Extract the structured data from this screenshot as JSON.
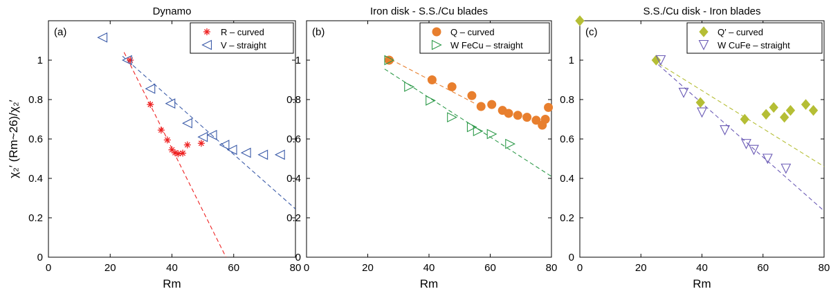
{
  "colors": {
    "red": "#ee2222",
    "blue": "#3a5aa8",
    "orange": "#e87f2e",
    "green": "#2e9a4a",
    "olive": "#b5be35",
    "purple": "#6a5ab5"
  },
  "chart_data": [
    {
      "type": "scatter",
      "title": "Dynamo",
      "panel_label": "(a)",
      "xlabel": "Rm",
      "ylabel": "χ₂′ (Rm~26)/χ₂′",
      "xlim": [
        0,
        80
      ],
      "ylim": [
        0,
        1.2
      ],
      "xticks": [
        0,
        20,
        40,
        60,
        80
      ],
      "yticks": [
        0,
        0.2,
        0.4,
        0.6,
        0.8,
        1
      ],
      "legend_position": "top-right",
      "series": [
        {
          "name": "R – curved",
          "marker": "asterisk",
          "color": "#ee2222",
          "x": [
            26.5,
            33,
            36.5,
            38.5,
            40,
            41,
            42,
            43.5,
            45,
            49.5
          ],
          "y": [
            1.0,
            0.775,
            0.645,
            0.595,
            0.545,
            0.53,
            0.525,
            0.528,
            0.57,
            0.578
          ],
          "fit": {
            "x1": 24.5,
            "y1": 1.04,
            "x2": 57.5,
            "y2": 0.0
          }
        },
        {
          "name": "V – straight",
          "marker": "triangle-left",
          "color": "#3a5aa8",
          "x": [
            17.5,
            25.5,
            33,
            39.5,
            45,
            50,
            53,
            57,
            59.5,
            64,
            69.5,
            75
          ],
          "y": [
            1.115,
            1.0,
            0.855,
            0.78,
            0.68,
            0.61,
            0.62,
            0.57,
            0.545,
            0.53,
            0.52,
            0.52
          ],
          "fit": {
            "x1": 24,
            "y1": 1.02,
            "x2": 80,
            "y2": 0.245
          }
        }
      ]
    },
    {
      "type": "scatter",
      "title": "Iron disk  - S.S./Cu blades",
      "panel_label": "(b)",
      "xlabel": "Rm",
      "xlim": [
        0,
        80
      ],
      "ylim": [
        0,
        1.2
      ],
      "xticks": [
        0,
        20,
        40,
        60,
        80
      ],
      "yticks": [
        0,
        0.2,
        0.4,
        0.6,
        0.8,
        1
      ],
      "legend_position": "top-right",
      "series": [
        {
          "name": "Q – curved",
          "marker": "circle",
          "color": "#e87f2e",
          "x": [
            27,
            41,
            47.5,
            54,
            57,
            60.5,
            64,
            66,
            69,
            72,
            75,
            77,
            78,
            79
          ],
          "y": [
            1.0,
            0.9,
            0.865,
            0.82,
            0.765,
            0.775,
            0.745,
            0.73,
            0.72,
            0.71,
            0.695,
            0.67,
            0.7,
            0.76
          ],
          "fit": {
            "x1": 25.5,
            "y1": 1.02,
            "x2": 55,
            "y2": 0.78
          }
        },
        {
          "name": "W FeCu – straight",
          "marker": "triangle-right",
          "color": "#2e9a4a",
          "x": [
            27,
            33.5,
            40.5,
            47.5,
            54,
            56,
            60.5,
            66.5
          ],
          "y": [
            1.0,
            0.865,
            0.795,
            0.71,
            0.66,
            0.64,
            0.625,
            0.575
          ],
          "fit": {
            "x1": 25.5,
            "y1": 0.955,
            "x2": 80,
            "y2": 0.41
          }
        }
      ]
    },
    {
      "type": "scatter",
      "title": "S.S./Cu disk - Iron blades",
      "panel_label": "(c)",
      "xlabel": "Rm",
      "xlim": [
        0,
        80
      ],
      "ylim": [
        0,
        1.2
      ],
      "xticks": [
        0,
        20,
        40,
        60,
        80
      ],
      "yticks": [
        0,
        0.2,
        0.4,
        0.6,
        0.8,
        1
      ],
      "legend_position": "top-right",
      "series": [
        {
          "name": "Q′ – curved",
          "marker": "diamond",
          "color": "#b5be35",
          "x": [
            0,
            25,
            39.5,
            54,
            61,
            63.5,
            67,
            69,
            74,
            76.5
          ],
          "y": [
            1.2,
            1.0,
            0.785,
            0.7,
            0.725,
            0.76,
            0.71,
            0.745,
            0.775,
            0.745
          ],
          "fit": {
            "x1": 24,
            "y1": 1.0,
            "x2": 80,
            "y2": 0.46
          }
        },
        {
          "name": "W CuFe – straight",
          "marker": "triangle-down",
          "color": "#6a5ab5",
          "x": [
            26.5,
            34,
            40,
            47.5,
            54.5,
            57,
            61.5,
            67.5
          ],
          "y": [
            1.0,
            0.835,
            0.735,
            0.645,
            0.575,
            0.545,
            0.5,
            0.45
          ],
          "fit": {
            "x1": 24,
            "y1": 1.0,
            "x2": 80,
            "y2": 0.235
          }
        }
      ]
    }
  ]
}
